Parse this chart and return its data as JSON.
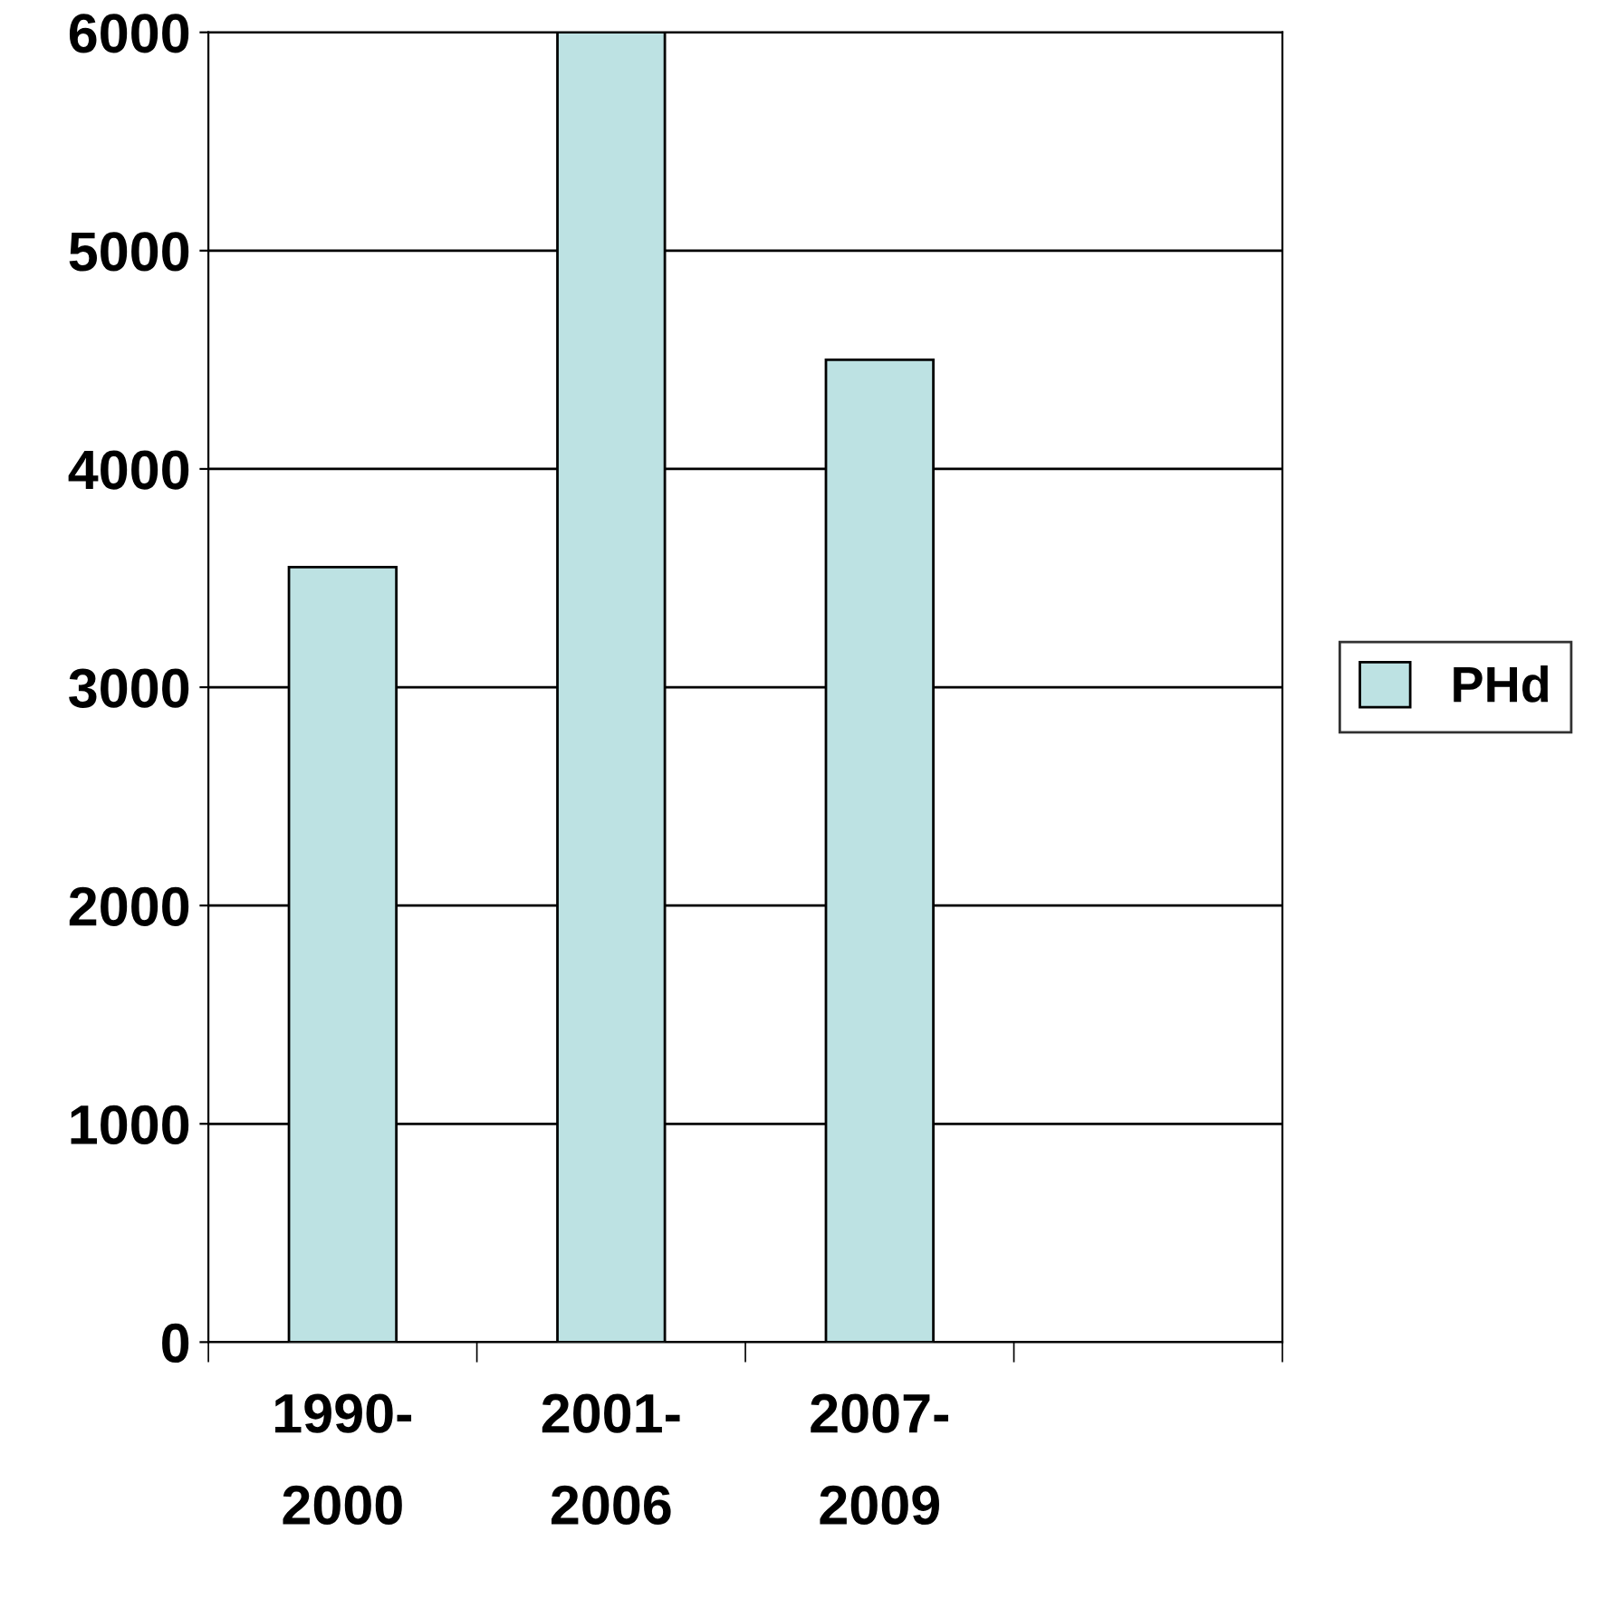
{
  "chart_data": {
    "type": "bar",
    "categories": [
      "1990-\n2000",
      "2001-\n2006",
      "2007-\n2009",
      null
    ],
    "series": [
      {
        "name": "PHd",
        "color": "#bde2e3",
        "values": [
          3550,
          6000,
          4500,
          null
        ]
      }
    ],
    "ylim": [
      0,
      6000
    ],
    "yticks": [
      0,
      1000,
      2000,
      3000,
      4000,
      5000,
      6000
    ],
    "grid": "y",
    "legend": "right"
  }
}
